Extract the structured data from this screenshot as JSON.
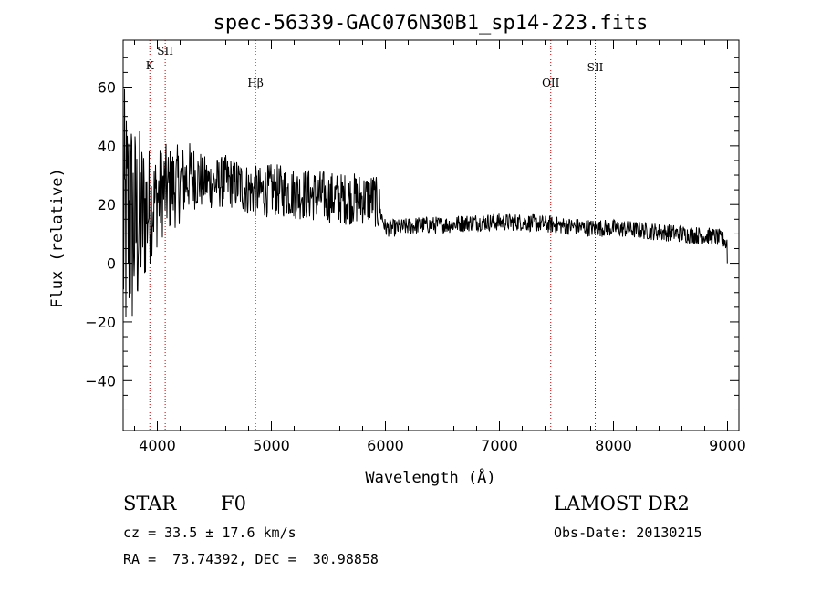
{
  "chart_data": {
    "type": "line",
    "title": "spec-56339-GAC076N30B1_sp14-223.fits",
    "xlabel": "Wavelength (Å)",
    "ylabel": "Flux (relative)",
    "xlim": [
      3700,
      9100
    ],
    "ylim": [
      -57,
      76
    ],
    "xticks": [
      4000,
      5000,
      6000,
      7000,
      8000,
      9000
    ],
    "yticks": [
      -40,
      -20,
      0,
      20,
      40,
      60
    ],
    "xtick_labels": [
      "4000",
      "5000",
      "6000",
      "7000",
      "8000",
      "9000"
    ],
    "ytick_labels": [
      "−40",
      "−20",
      "0",
      "20",
      "40",
      "60"
    ],
    "series_anchors": {
      "name": "",
      "x": [
        3700,
        3750,
        3800,
        3850,
        3900,
        3950,
        4000,
        4050,
        4100,
        4200,
        4300,
        4400,
        4500,
        4600,
        4700,
        4800,
        4900,
        5000,
        5200,
        5400,
        5600,
        5800,
        5900,
        5950,
        6000,
        6100,
        6300,
        6500,
        6800,
        7000,
        7200,
        7500,
        7800,
        8000,
        8300,
        8600,
        8900,
        8950,
        8980,
        9000
      ],
      "y": [
        10,
        15,
        12,
        15,
        18,
        20,
        22,
        25,
        25,
        27,
        30,
        28,
        27,
        28,
        27,
        25,
        24,
        25,
        24,
        23,
        22,
        22,
        22,
        18,
        12,
        12,
        13,
        13,
        14,
        14,
        14,
        13,
        12,
        12,
        11,
        10,
        9,
        8,
        8,
        0
      ],
      "noise_amplitude_low": 50,
      "noise_amplitude_high": 3
    },
    "spectral_lines": [
      {
        "label": "K",
        "wavelength": 3934
      },
      {
        "label": "SII",
        "wavelength": 4069
      },
      {
        "label": "Hβ",
        "wavelength": 4861
      },
      {
        "label": "OII",
        "wavelength": 7450
      },
      {
        "label": "SII",
        "wavelength": 7840
      }
    ],
    "grid": false,
    "line_color": "#000000",
    "marker_line_color": "#c00000"
  },
  "info": {
    "object_class": "STAR",
    "subclass": "F0",
    "cz": "cz = 33.5 ± 17.6 km/s",
    "radec": "RA =  73.74392, DEC =  30.98858",
    "survey": "LAMOST DR2",
    "obs_date": "Obs-Date: 20130215"
  }
}
